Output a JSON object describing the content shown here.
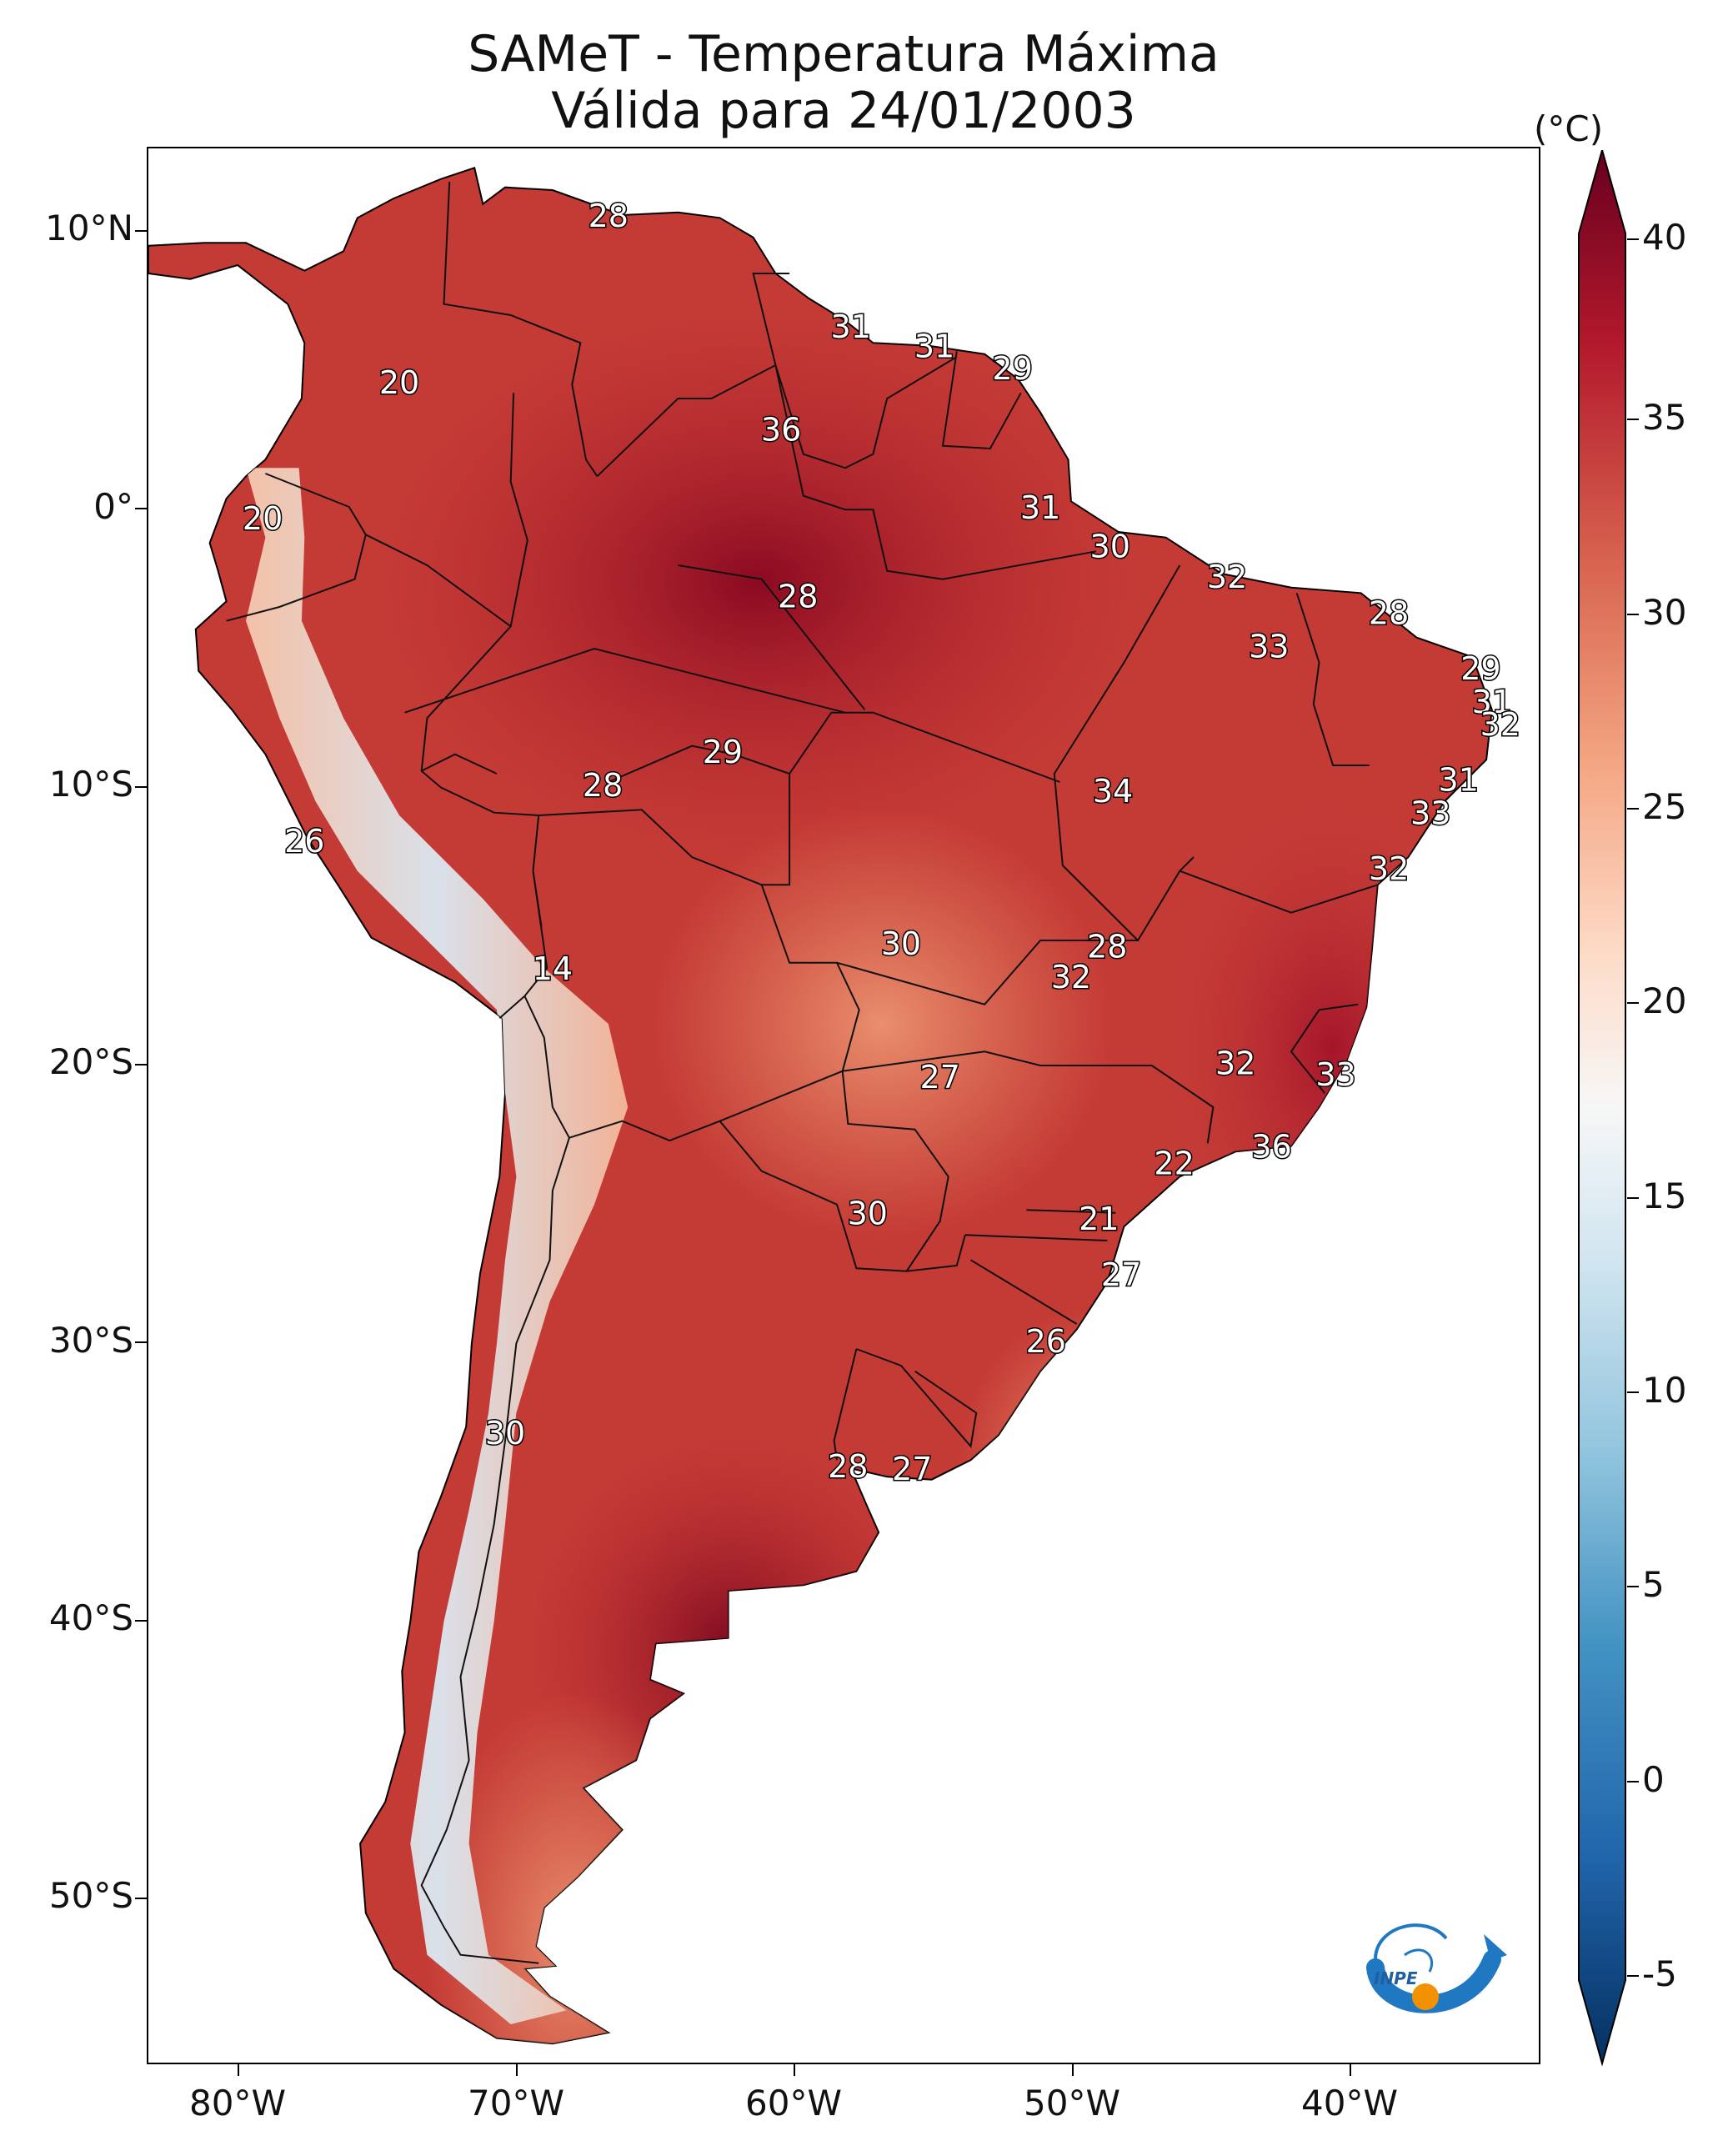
{
  "title": {
    "line1": "SAMeT - Temperatura Máxima",
    "line2": "Válida para 24/01/2003"
  },
  "axes": {
    "lat_labels": [
      "10°N",
      "0°",
      "10°S",
      "20°S",
      "30°S",
      "40°S",
      "50°S"
    ],
    "lon_labels": [
      "80°W",
      "70°W",
      "60°W",
      "50°W",
      "40°W"
    ],
    "lon_range": [
      -83,
      -33
    ],
    "lat_range": [
      -56,
      13
    ]
  },
  "colorbar": {
    "unit": "(°C)",
    "ticks": [
      "40",
      "35",
      "30",
      "25",
      "20",
      "15",
      "10",
      "5",
      "0",
      "-5"
    ],
    "range": [
      -7,
      40
    ],
    "stops": [
      "#67001f",
      "#b2182b",
      "#d6604d",
      "#f4a582",
      "#fddbc7",
      "#f7f7f7",
      "#d1e5f0",
      "#92c5de",
      "#4393c3",
      "#2166ac",
      "#053061"
    ]
  },
  "contour_labels": [
    {
      "text": "28",
      "lon": -66.5,
      "lat": 10.5
    },
    {
      "text": "20",
      "lon": -74.0,
      "lat": 4.5
    },
    {
      "text": "31",
      "lon": -57.8,
      "lat": 6.5
    },
    {
      "text": "31",
      "lon": -54.8,
      "lat": 5.8
    },
    {
      "text": "29",
      "lon": -52.0,
      "lat": 5.0
    },
    {
      "text": "36",
      "lon": -60.3,
      "lat": 2.8
    },
    {
      "text": "20",
      "lon": -78.9,
      "lat": -0.4
    },
    {
      "text": "31",
      "lon": -51.0,
      "lat": 0.0
    },
    {
      "text": "30",
      "lon": -48.5,
      "lat": -1.4
    },
    {
      "text": "28",
      "lon": -59.7,
      "lat": -3.2
    },
    {
      "text": "32",
      "lon": -44.3,
      "lat": -2.5
    },
    {
      "text": "28",
      "lon": -38.5,
      "lat": -3.8
    },
    {
      "text": "33",
      "lon": -42.8,
      "lat": -5.0
    },
    {
      "text": "29",
      "lon": -35.2,
      "lat": -5.8
    },
    {
      "text": "31",
      "lon": -34.8,
      "lat": -7.0
    },
    {
      "text": "32",
      "lon": -34.5,
      "lat": -7.8
    },
    {
      "text": "29",
      "lon": -62.4,
      "lat": -8.8
    },
    {
      "text": "28",
      "lon": -66.7,
      "lat": -10.0
    },
    {
      "text": "31",
      "lon": -36.0,
      "lat": -9.8
    },
    {
      "text": "34",
      "lon": -48.4,
      "lat": -10.2
    },
    {
      "text": "33",
      "lon": -37.0,
      "lat": -11.0
    },
    {
      "text": "26",
      "lon": -77.4,
      "lat": -12.0
    },
    {
      "text": "32",
      "lon": -38.5,
      "lat": -13.0
    },
    {
      "text": "30",
      "lon": -56.0,
      "lat": -15.7
    },
    {
      "text": "28",
      "lon": -48.6,
      "lat": -15.8
    },
    {
      "text": "14",
      "lon": -68.5,
      "lat": -16.6
    },
    {
      "text": "32",
      "lon": -49.9,
      "lat": -16.9
    },
    {
      "text": "32",
      "lon": -44.0,
      "lat": -20.0
    },
    {
      "text": "33",
      "lon": -40.4,
      "lat": -20.4
    },
    {
      "text": "27",
      "lon": -54.6,
      "lat": -20.5
    },
    {
      "text": "36",
      "lon": -42.7,
      "lat": -23.0
    },
    {
      "text": "22",
      "lon": -46.2,
      "lat": -23.6
    },
    {
      "text": "21",
      "lon": -48.9,
      "lat": -25.6
    },
    {
      "text": "30",
      "lon": -57.2,
      "lat": -25.4
    },
    {
      "text": "27",
      "lon": -48.1,
      "lat": -27.6
    },
    {
      "text": "26",
      "lon": -50.8,
      "lat": -30.0
    },
    {
      "text": "30",
      "lon": -70.2,
      "lat": -33.3
    },
    {
      "text": "28",
      "lon": -57.9,
      "lat": -34.5
    },
    {
      "text": "27",
      "lon": -55.6,
      "lat": -34.6
    }
  ],
  "logo": {
    "text": "INPE"
  }
}
